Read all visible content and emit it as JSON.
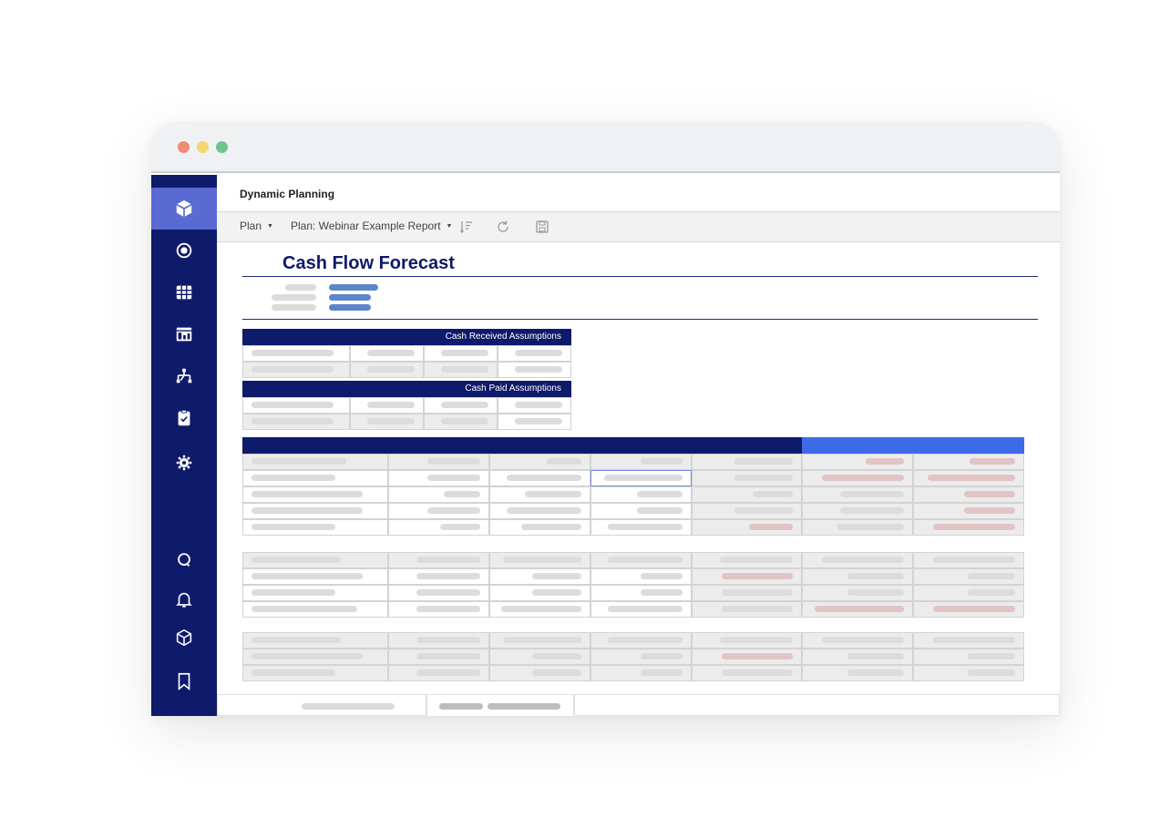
{
  "window": {
    "traffic_lights": {
      "close": "#f28b74",
      "minimize": "#f5d76e",
      "maximize": "#6cc58f"
    }
  },
  "colors": {
    "navy": "#0e1a6a",
    "accent": "#5a6ad2",
    "bright_blue": "#3d6be8",
    "rule": "#1e2a7a"
  },
  "sidebar": {
    "items": [
      {
        "icon": "cube-icon",
        "active": true
      },
      {
        "icon": "target-icon",
        "active": false
      },
      {
        "icon": "grid-icon",
        "active": false
      },
      {
        "icon": "dashboard-icon",
        "active": false
      },
      {
        "icon": "hierarchy-icon",
        "active": false
      },
      {
        "icon": "clipboard-icon",
        "active": false
      },
      {
        "icon": "gear-icon",
        "active": false
      },
      {
        "icon": "search-icon",
        "active": false
      },
      {
        "icon": "bell-icon",
        "active": false
      },
      {
        "icon": "box-icon",
        "active": false
      },
      {
        "icon": "bookmark-icon",
        "active": false
      }
    ]
  },
  "app": {
    "title": "Dynamic Planning"
  },
  "toolbar": {
    "plan_label": "Plan",
    "report_label": "Plan: Webinar Example Report",
    "icons": [
      "sort-icon",
      "refresh-icon",
      "save-icon"
    ]
  },
  "report": {
    "title": "Cash Flow Forecast",
    "sections": {
      "received": "Cash Received Assumptions",
      "paid": "Cash Paid Assumptions"
    }
  }
}
